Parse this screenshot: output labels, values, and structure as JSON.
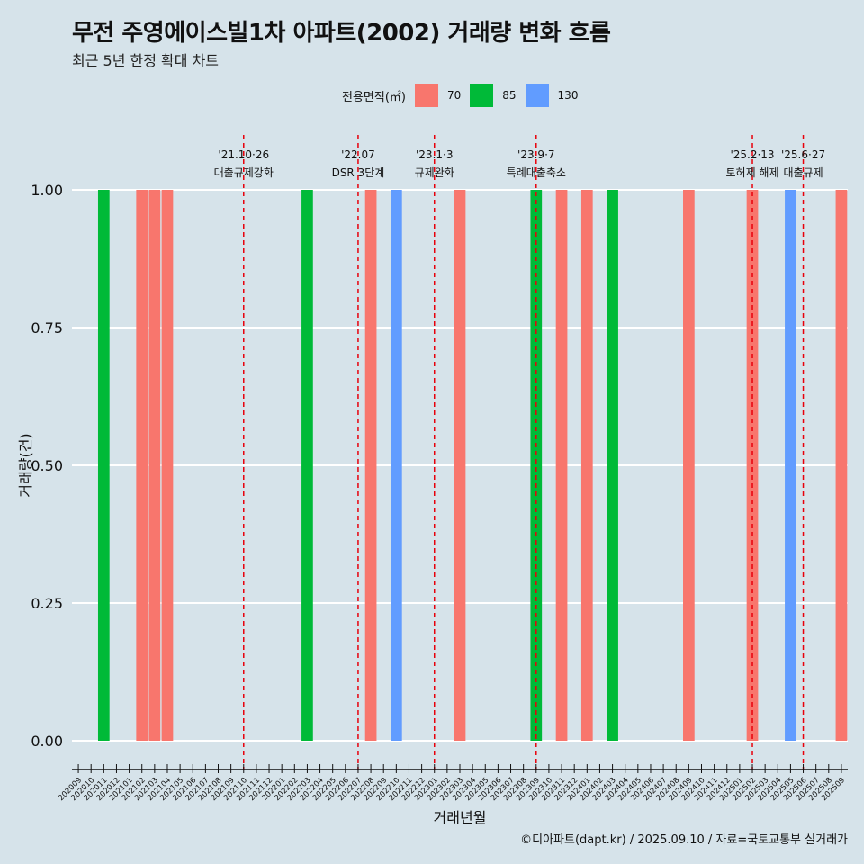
{
  "header": {
    "title": "무전 주영에이스빌1차 아파트(2002) 거래량 변화 흐름",
    "subtitle": "최근 5년 한정 확대 차트"
  },
  "legend": {
    "title": "전용면적(㎡)",
    "items": [
      {
        "label": "70",
        "color": "#f8766d"
      },
      {
        "label": "85",
        "color": "#00ba38"
      },
      {
        "label": "130",
        "color": "#619cff"
      }
    ]
  },
  "caption": "©디아파트(dapt.kr) / 2025.09.10 / 자료=국토교통부 실거래가",
  "chart_data": {
    "type": "bar",
    "xlabel": "거래년월",
    "ylabel": "거래량(건)",
    "ylim": [
      0,
      1
    ],
    "yticks": [
      "0.00",
      "0.25",
      "0.50",
      "0.75",
      "1.00"
    ],
    "grid": true,
    "legend_position": "top",
    "categories": [
      "202009",
      "202010",
      "202011",
      "202012",
      "202101",
      "202102",
      "202103",
      "202104",
      "202105",
      "202106",
      "202107",
      "202108",
      "202109",
      "202110",
      "202111",
      "202112",
      "202201",
      "202202",
      "202203",
      "202204",
      "202205",
      "202206",
      "202207",
      "202208",
      "202209",
      "202210",
      "202211",
      "202212",
      "202301",
      "202302",
      "202303",
      "202304",
      "202305",
      "202306",
      "202307",
      "202308",
      "202309",
      "202310",
      "202311",
      "202312",
      "202401",
      "202402",
      "202403",
      "202404",
      "202405",
      "202406",
      "202407",
      "202408",
      "202409",
      "202410",
      "202411",
      "202412",
      "202501",
      "202502",
      "202503",
      "202504",
      "202505",
      "202506",
      "202507",
      "202508",
      "202509"
    ],
    "bars": [
      {
        "x": "202011",
        "area": "85",
        "value": 1
      },
      {
        "x": "202102",
        "area": "70",
        "value": 1
      },
      {
        "x": "202103",
        "area": "70",
        "value": 1
      },
      {
        "x": "202104",
        "area": "70",
        "value": 1
      },
      {
        "x": "202203",
        "area": "85",
        "value": 1
      },
      {
        "x": "202208",
        "area": "70",
        "value": 1
      },
      {
        "x": "202210",
        "area": "130",
        "value": 1
      },
      {
        "x": "202303",
        "area": "70",
        "value": 1
      },
      {
        "x": "202309",
        "area": "85",
        "value": 1
      },
      {
        "x": "202311",
        "area": "70",
        "value": 1
      },
      {
        "x": "202401",
        "area": "70",
        "value": 1
      },
      {
        "x": "202403",
        "area": "85",
        "value": 1
      },
      {
        "x": "202409",
        "area": "70",
        "value": 1
      },
      {
        "x": "202502",
        "area": "70",
        "value": 1
      },
      {
        "x": "202505",
        "area": "130",
        "value": 1
      },
      {
        "x": "202509",
        "area": "70",
        "value": 1
      }
    ],
    "annotations": [
      {
        "x": "202110",
        "date": "'21.10·26",
        "label": "대출규제강화"
      },
      {
        "x": "202207",
        "date": "'22.07",
        "label": "DSR 3단계"
      },
      {
        "x": "202301",
        "date": "'23.1·3",
        "label": "규제완화"
      },
      {
        "x": "202309",
        "date": "'23.9·7",
        "label": "특례대출축소"
      },
      {
        "x": "202502",
        "date": "'25.2·13",
        "label": "토허제 해제"
      },
      {
        "x": "202506",
        "date": "'25.6·27",
        "label": "대출규제"
      }
    ]
  }
}
